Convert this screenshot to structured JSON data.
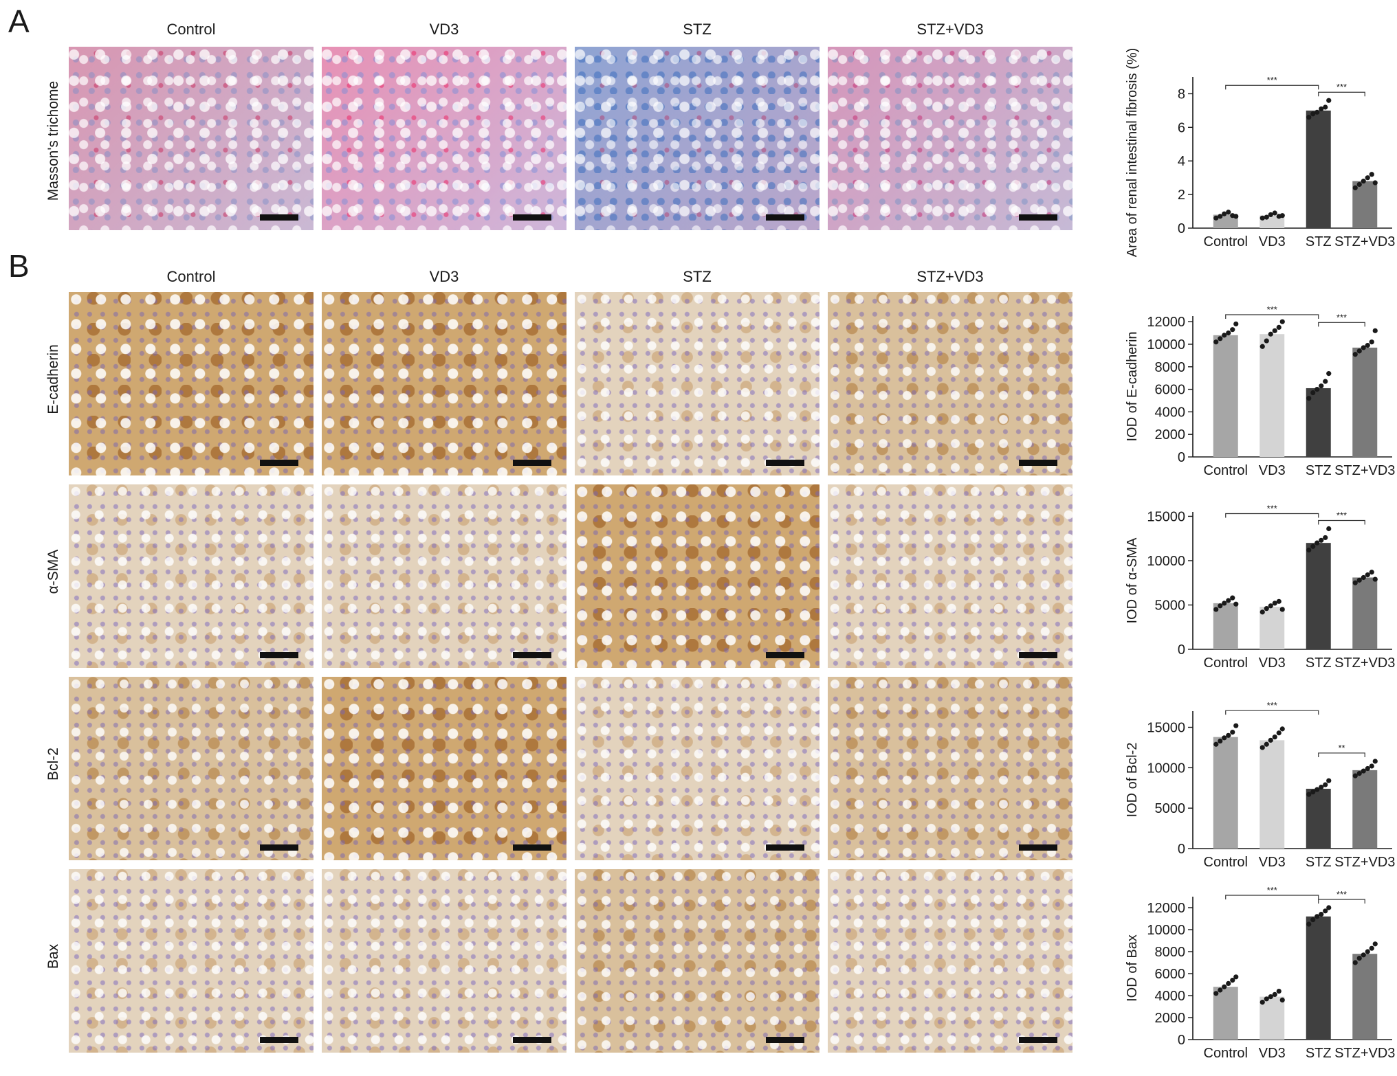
{
  "panels": {
    "a": "A",
    "b": "B"
  },
  "groups": [
    "Control",
    "VD3",
    "STZ",
    "STZ+VD3"
  ],
  "row_labels": {
    "masson": "Masson's trichome",
    "ecad": "E-cadherin",
    "sma": "α-SMA",
    "bcl2": "Bcl-2",
    "bax": "Bax"
  },
  "colors": {
    "control": "#a6a6a6",
    "vd3": "#d4d4d4",
    "stz": "#404040",
    "stz_vd3": "#7a7a7a",
    "dots": "#1a1a1a"
  },
  "chart_data": [
    {
      "type": "bar",
      "categories": [
        "Control",
        "VD3",
        "STZ",
        "STZ+VD3"
      ],
      "values": [
        0.8,
        0.75,
        7.0,
        2.8
      ],
      "points": [
        [
          0.6,
          0.7,
          0.85,
          0.95,
          0.75,
          0.7
        ],
        [
          0.6,
          0.65,
          0.8,
          0.9,
          0.7,
          0.75
        ],
        [
          6.6,
          6.8,
          6.9,
          7.1,
          7.2,
          7.6
        ],
        [
          2.4,
          2.6,
          2.8,
          3.0,
          3.2,
          2.7
        ]
      ],
      "ylabel": "Area of renal intestinal fibrosis (%)",
      "ylim": [
        0,
        9
      ],
      "yticks": [
        0,
        2,
        4,
        6,
        8
      ],
      "sig": [
        {
          "from": 0,
          "to": 2,
          "label": "***"
        },
        {
          "from": 2,
          "to": 3,
          "label": "***"
        }
      ]
    },
    {
      "type": "bar",
      "categories": [
        "Control",
        "VD3",
        "STZ",
        "STZ+VD3"
      ],
      "values": [
        10800,
        10900,
        6100,
        9700
      ],
      "points": [
        [
          10200,
          10500,
          10800,
          11000,
          11300,
          11800
        ],
        [
          9800,
          10300,
          10900,
          11200,
          11500,
          12000
        ],
        [
          5200,
          5700,
          6000,
          6300,
          6700,
          7400
        ],
        [
          9100,
          9400,
          9700,
          9900,
          10200,
          11200
        ]
      ],
      "ylabel": "IOD of E-cadherin",
      "ylim": [
        0,
        12500
      ],
      "yticks": [
        0,
        2000,
        4000,
        6000,
        8000,
        10000,
        12000
      ],
      "sig": [
        {
          "from": 0,
          "to": 2,
          "label": "***"
        },
        {
          "from": 2,
          "to": 3,
          "label": "***"
        }
      ]
    },
    {
      "type": "bar",
      "categories": [
        "Control",
        "VD3",
        "STZ",
        "STZ+VD3"
      ],
      "values": [
        5200,
        4800,
        12000,
        8100
      ],
      "points": [
        [
          4500,
          4900,
          5200,
          5500,
          5800,
          5100
        ],
        [
          4200,
          4600,
          4900,
          5200,
          5400,
          4500
        ],
        [
          11200,
          11600,
          12000,
          12300,
          12600,
          13600
        ],
        [
          7500,
          7800,
          8100,
          8400,
          8700,
          7900
        ]
      ],
      "ylabel": "IOD of α-SMA",
      "ylim": [
        0,
        15500
      ],
      "yticks": [
        0,
        5000,
        10000,
        15000
      ],
      "sig": [
        {
          "from": 0,
          "to": 2,
          "label": "***"
        },
        {
          "from": 2,
          "to": 3,
          "label": "***"
        }
      ]
    },
    {
      "type": "bar",
      "categories": [
        "Control",
        "VD3",
        "STZ",
        "STZ+VD3"
      ],
      "values": [
        13800,
        13400,
        7400,
        9700
      ],
      "points": [
        [
          12900,
          13300,
          13700,
          14000,
          14400,
          15200
        ],
        [
          12500,
          12900,
          13400,
          13800,
          14300,
          14800
        ],
        [
          6700,
          7000,
          7300,
          7600,
          7900,
          8400
        ],
        [
          9000,
          9300,
          9600,
          9900,
          10200,
          10800
        ]
      ],
      "ylabel": "IOD of Bcl-2",
      "ylim": [
        0,
        17000
      ],
      "yticks": [
        0,
        5000,
        10000,
        15000
      ],
      "sig": [
        {
          "from": 0,
          "to": 2,
          "label": "***"
        },
        {
          "from": 2,
          "to": 3,
          "label": "**"
        }
      ]
    },
    {
      "type": "bar",
      "categories": [
        "Control",
        "VD3",
        "STZ",
        "STZ+VD3"
      ],
      "values": [
        4800,
        3900,
        11200,
        7800
      ],
      "points": [
        [
          4200,
          4500,
          4800,
          5100,
          5400,
          5700
        ],
        [
          3400,
          3700,
          3900,
          4100,
          4400,
          3600
        ],
        [
          10500,
          10900,
          11200,
          11400,
          11700,
          12000
        ],
        [
          7000,
          7400,
          7700,
          8000,
          8300,
          8700
        ]
      ],
      "ylabel": "IOD of Bax",
      "ylim": [
        0,
        13000
      ],
      "yticks": [
        0,
        2000,
        4000,
        6000,
        8000,
        10000,
        12000
      ],
      "sig": [
        {
          "from": 0,
          "to": 2,
          "label": "***"
        },
        {
          "from": 2,
          "to": 3,
          "label": "***"
        }
      ]
    }
  ]
}
